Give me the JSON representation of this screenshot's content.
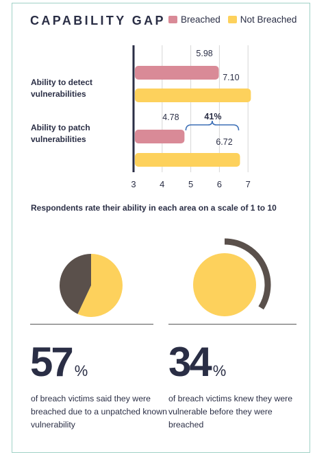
{
  "header": {
    "title": "CAPABILITY GAP",
    "legend": [
      {
        "label": "Breached",
        "color": "#d98a97"
      },
      {
        "label": "Not Breached",
        "color": "#fdd15c"
      }
    ]
  },
  "chart_data": [
    {
      "type": "bar",
      "orientation": "horizontal",
      "categories": [
        "Ability to detect vulnerabilities",
        "Ability to patch vulnerabilities"
      ],
      "series": [
        {
          "name": "Breached",
          "values": [
            5.98,
            4.78
          ],
          "color": "#d98a97"
        },
        {
          "name": "Not Breached",
          "values": [
            7.1,
            6.72
          ],
          "color": "#fdd15c"
        }
      ],
      "value_labels": [
        "5.98",
        "7.10",
        "4.78",
        "6.72"
      ],
      "annotation": "41%",
      "xlim": [
        3,
        7.3
      ],
      "xticks": [
        "3",
        "4",
        "5",
        "6",
        "7"
      ],
      "grid": true
    },
    {
      "type": "pie",
      "slices": [
        {
          "value": 57,
          "color": "#fdd15c"
        },
        {
          "value": 43,
          "color": "#5a504b"
        }
      ]
    },
    {
      "type": "pie",
      "style": "arc",
      "slices": [
        {
          "value": 34,
          "color": "#5a504b"
        },
        {
          "value": 66,
          "color": "#fdd15c"
        }
      ]
    }
  ],
  "caption": "Respondents rate their ability in each area on a scale of 1 to 10",
  "stats": [
    {
      "number": "57",
      "unit": "%",
      "description": "of breach victims said they were breached due to a unpatched known vulnerability"
    },
    {
      "number": "34",
      "unit": "%",
      "description": "of breach victims knew they were vulnerable before they were breached"
    }
  ]
}
